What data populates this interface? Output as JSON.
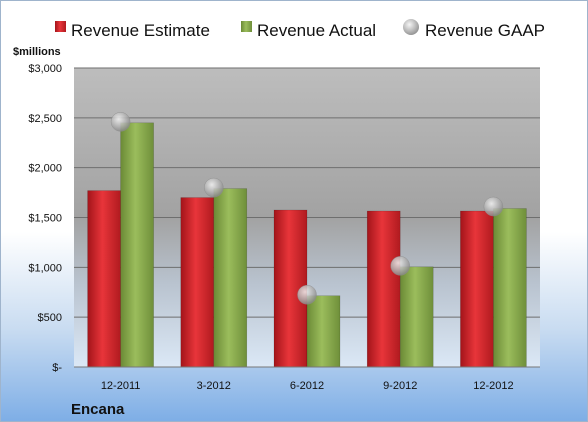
{
  "chart_data": {
    "type": "bar",
    "title": "",
    "ylabel": "$millions",
    "ylim": [
      0,
      3000
    ],
    "yticks": [
      0,
      500,
      1000,
      1500,
      2000,
      2500,
      3000
    ],
    "ytick_labels": [
      "$-",
      "$500",
      "$1,000",
      "$1,500",
      "$2,000",
      "$2,500",
      "$3,000"
    ],
    "categories": [
      "12-2011",
      "3-2012",
      "6-2012",
      "9-2012",
      "12-2012"
    ],
    "series": [
      {
        "name": "Revenue Estimate",
        "kind": "bar",
        "color": "#d9252a",
        "values": [
          1770,
          1700,
          1575,
          1565,
          1565
        ]
      },
      {
        "name": "Revenue Actual",
        "kind": "bar",
        "color": "#8bab4e",
        "values": [
          2450,
          1790,
          715,
          1005,
          1590
        ]
      },
      {
        "name": "Revenue GAAP",
        "kind": "marker",
        "color": "#a8a8a8",
        "values": [
          2460,
          1800,
          725,
          1015,
          1610
        ]
      }
    ],
    "legend_position": "top",
    "grid": true,
    "company_label": "Encana"
  }
}
